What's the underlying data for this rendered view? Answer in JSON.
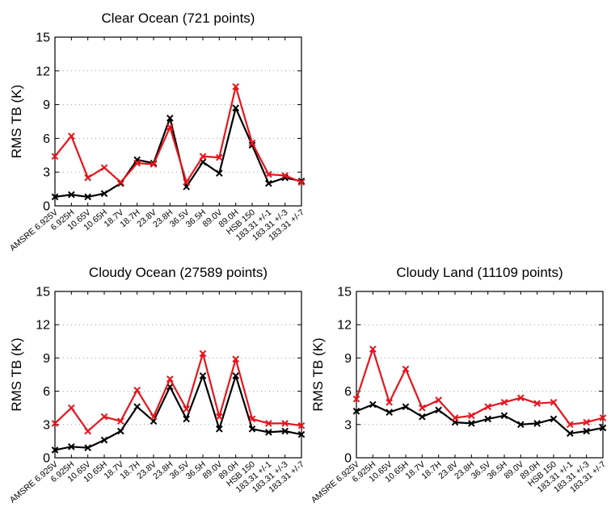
{
  "colors": {
    "series_black": "#000000",
    "series_red": "#e8141c",
    "grid": "#999999"
  },
  "chart_data": [
    {
      "type": "line",
      "title": "Clear Ocean (721 points)",
      "ylabel": "RMS TB (K)",
      "ylim": [
        0,
        15
      ],
      "yticks": [
        "0",
        "3",
        "6",
        "9",
        "12",
        "15"
      ],
      "categories": [
        "AMSRE 6.925V",
        "6.925H",
        "10.65V",
        "10.65H",
        "18.7V",
        "18.7H",
        "23.8V",
        "23.8H",
        "36.5V",
        "36.5H",
        "89.0V",
        "89.0H",
        "HSB 150",
        "183.31 +/-1",
        "183.31 +/-3",
        "183.31 +/-7"
      ],
      "grid": "horizontal dotted",
      "series": [
        {
          "color": "#000000",
          "values": [
            0.8,
            1.0,
            0.8,
            1.1,
            2.0,
            4.1,
            3.8,
            7.8,
            1.7,
            3.9,
            2.9,
            8.7,
            5.4,
            2.0,
            2.5,
            2.2
          ]
        },
        {
          "color": "#e8141c",
          "values": [
            4.4,
            6.2,
            2.5,
            3.4,
            2.1,
            3.8,
            3.7,
            7.0,
            2.1,
            4.4,
            4.3,
            10.6,
            5.6,
            2.8,
            2.7,
            2.1
          ]
        }
      ]
    },
    {
      "type": "line",
      "title": "Cloudy Ocean (27589 points)",
      "ylabel": "RMS TB (K)",
      "ylim": [
        0,
        15
      ],
      "yticks": [
        "0",
        "3",
        "6",
        "9",
        "12",
        "15"
      ],
      "categories": [
        "AMSRE 6.925V",
        "6.925H",
        "10.65V",
        "10.65H",
        "18.7V",
        "18.7H",
        "23.8V",
        "23.8H",
        "36.5V",
        "36.5H",
        "89.0V",
        "89.0H",
        "HSB 150",
        "183.31 +/-1",
        "183.31 +/-3",
        "183.31 +/-7"
      ],
      "grid": "horizontal dotted",
      "series": [
        {
          "color": "#000000",
          "values": [
            0.7,
            1.0,
            0.9,
            1.6,
            2.4,
            4.6,
            3.3,
            6.4,
            3.5,
            7.4,
            2.6,
            7.4,
            2.6,
            2.3,
            2.4,
            2.1
          ]
        },
        {
          "color": "#e8141c",
          "values": [
            3.1,
            4.5,
            2.4,
            3.7,
            3.3,
            6.1,
            3.7,
            7.1,
            4.4,
            9.4,
            3.7,
            8.9,
            3.5,
            3.1,
            3.1,
            2.9
          ]
        }
      ]
    },
    {
      "type": "line",
      "title": "Cloudy Land (11109 points)",
      "ylabel": "RMS TB (K)",
      "ylim": [
        0,
        15
      ],
      "yticks": [
        "0",
        "3",
        "6",
        "9",
        "12",
        "15"
      ],
      "categories": [
        "AMSRE 6.925V",
        "6.925H",
        "10.65V",
        "10.65H",
        "18.7V",
        "18.7H",
        "23.8V",
        "23.8H",
        "36.5V",
        "36.5H",
        "89.0V",
        "89.0H",
        "HSB 150",
        "183.31 +/-1",
        "183.31 +/-3",
        "183.31 +/-7"
      ],
      "grid": "horizontal dotted",
      "series": [
        {
          "color": "#000000",
          "values": [
            4.2,
            4.8,
            4.1,
            4.6,
            3.7,
            4.3,
            3.2,
            3.1,
            3.5,
            3.8,
            3.0,
            3.1,
            3.5,
            2.2,
            2.4,
            2.7
          ]
        },
        {
          "color": "#e8141c",
          "values": [
            5.3,
            9.8,
            5.0,
            8.0,
            4.5,
            5.2,
            3.6,
            3.8,
            4.6,
            5.0,
            5.4,
            4.9,
            5.0,
            3.0,
            3.2,
            3.6
          ]
        }
      ]
    }
  ]
}
